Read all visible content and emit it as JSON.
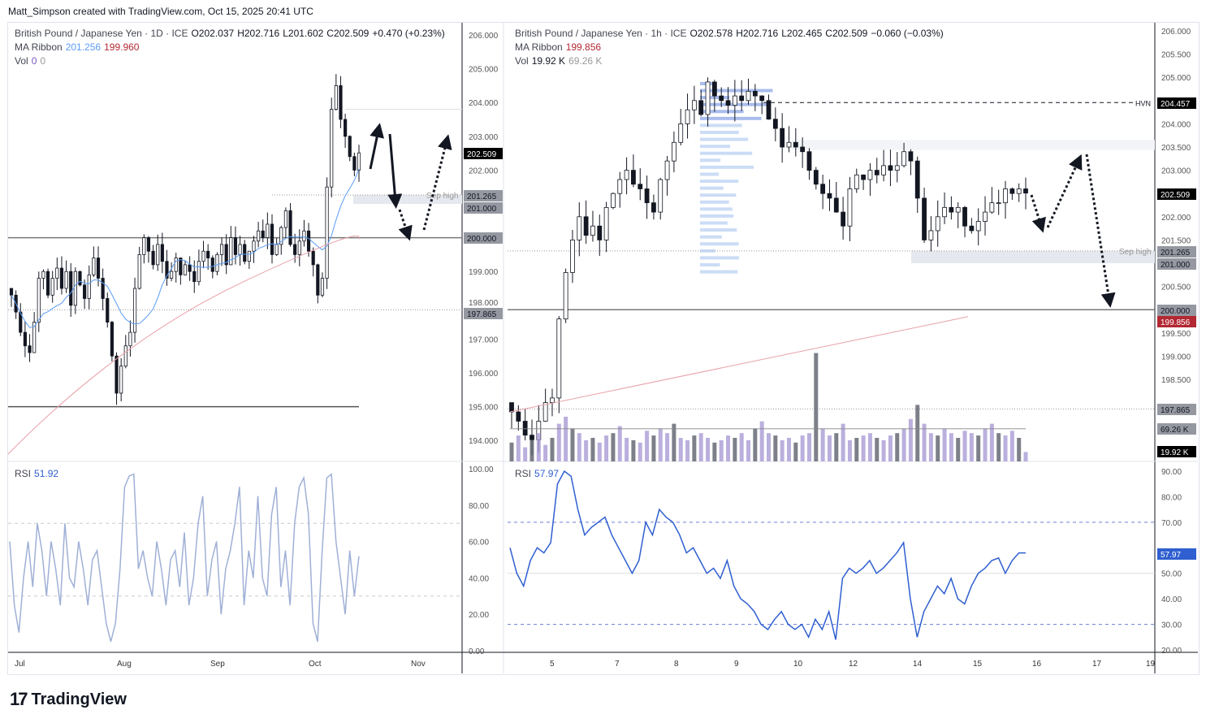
{
  "credit": "Matt_Simpson created with TradingView.com, Oct 15, 2025 20:41 UTC",
  "logo": "TradingView",
  "colors": {
    "ma_fast": "#5b9cf6",
    "ma_slow": "#e8a0a8",
    "rsi_left": "#9fb0d6",
    "rsi_right": "#2f5fd0",
    "last_price": "#000000",
    "ma_label": "#b22833",
    "volume": "#a99bd4"
  },
  "left": {
    "title": "British Pound / Japanese Yen · 1D · ICE",
    "open": "O202.037",
    "high": "H202.716",
    "low": "L201.602",
    "close": "C202.509",
    "change": "+0.470 (+0.23%)",
    "ma_label": "MA Ribbon",
    "ma_fast": "201.256",
    "ma_slow": "199.960",
    "vol_label": "Vol",
    "vol1": "0",
    "vol2": "0",
    "rsi_label": "RSI",
    "rsi_value": "51.92",
    "annotation": "Sep high",
    "price_ticks": [
      "206.000",
      "205.000",
      "204.000",
      "203.000",
      "202.000",
      "201.000",
      "200.000",
      "199.000",
      "198.000",
      "197.000",
      "196.000",
      "195.000",
      "194.000"
    ],
    "badges": {
      "last": "202.509",
      "sep_high": "201.265",
      "zone_low": "201.000",
      "level": "200.000",
      "low": "197.865"
    },
    "rsi_ticks": [
      "100.00",
      "80.00",
      "60.00",
      "40.00",
      "20.00",
      "0.00"
    ],
    "time_ticks": [
      "Jul",
      "Aug",
      "Sep",
      "Oct",
      "Nov"
    ]
  },
  "right": {
    "title": "British Pound / Japanese Yen · 1h · ICE",
    "open": "O202.578",
    "high": "H202.716",
    "low": "L202.465",
    "close": "C202.509",
    "change": "−0.060 (−0.03%)",
    "ma_label": "MA Ribbon",
    "ma_slow": "199.856",
    "vol_label": "Vol",
    "vol1": "19.92 K",
    "vol2": "69.26 K",
    "rsi_label": "RSI",
    "rsi_value": "57.97",
    "annotation": "Sep high",
    "hvn": "HVN",
    "price_ticks": [
      "206.000",
      "205.500",
      "205.000",
      "204.000",
      "203.500",
      "203.000",
      "202.000",
      "201.500",
      "200.500",
      "199.500",
      "199.000",
      "198.500"
    ],
    "badges": {
      "hvn": "204.457",
      "last": "202.509",
      "sep_high": "201.265",
      "zone_low": "201.000",
      "level": "200.000",
      "ma": "199.856",
      "low": "197.865",
      "vol_ma": "69.26 K",
      "vol": "19.92 K",
      "rsi": "57.97"
    },
    "rsi_ticks": [
      "90.00",
      "80.00",
      "70.00",
      "50.00",
      "40.00",
      "30.00",
      "20.00"
    ],
    "time_ticks": [
      "5",
      "7",
      "8",
      "9",
      "10",
      "12",
      "14",
      "15",
      "16",
      "17",
      "19"
    ]
  },
  "chart_data": [
    {
      "type": "candlestick",
      "timeframe": "1D",
      "x_range": [
        "2025-07-01",
        "2025-10-15"
      ],
      "ylim": [
        194,
        206
      ],
      "close": [
        198.3,
        197.8,
        197.2,
        196.8,
        196.6,
        197.5,
        198.8,
        199.0,
        198.3,
        198.8,
        199.1,
        198.5,
        199.0,
        198.0,
        199.0,
        198.6,
        198.2,
        198.9,
        199.4,
        198.8,
        198.2,
        197.5,
        196.5,
        195.4,
        196.2,
        196.8,
        197.2,
        198.5,
        199.5,
        200.0,
        199.6,
        199.2,
        199.8,
        199.3,
        198.8,
        199.0,
        199.4,
        198.9,
        199.2,
        199.0,
        198.7,
        199.3,
        199.6,
        199.4,
        199.0,
        199.5,
        199.8,
        199.2,
        200.0,
        199.5,
        199.8,
        199.3,
        199.6,
        199.9,
        200.2,
        200.0,
        200.4,
        199.5,
        199.8,
        200.3,
        200.8,
        199.8,
        199.5,
        199.9,
        200.2,
        199.6,
        199.2,
        198.3,
        198.8,
        201.5,
        203.8,
        204.5,
        203.5,
        203.0,
        202.4,
        202.0,
        202.509
      ],
      "rsi": [
        60,
        25,
        10,
        40,
        60,
        35,
        70,
        55,
        30,
        60,
        45,
        25,
        70,
        40,
        35,
        60,
        45,
        25,
        50,
        55,
        35,
        15,
        5,
        15,
        45,
        90,
        96,
        97,
        45,
        55,
        40,
        30,
        60,
        45,
        25,
        50,
        55,
        35,
        65,
        25,
        40,
        70,
        85,
        30,
        50,
        60,
        20,
        45,
        55,
        70,
        90,
        25,
        55,
        40,
        85,
        40,
        30,
        75,
        90,
        35,
        55,
        25,
        70,
        90,
        95,
        75,
        15,
        5,
        55,
        95,
        97,
        60,
        40,
        20,
        55,
        30,
        51.92
      ],
      "levels": {
        "sep_high": 201.265,
        "zone": [
          201.0,
          201.265
        ],
        "round": 200.0,
        "low": 197.865,
        "support": 195.0
      },
      "ma_fast_end": 201.256,
      "ma_slow_end": 199.96
    },
    {
      "type": "candlestick",
      "timeframe": "1h",
      "x_range": [
        "2025-10-03",
        "2025-10-15"
      ],
      "ylim": [
        194,
        206.2
      ],
      "close": [
        197.8,
        197.6,
        197.3,
        197.2,
        197.6,
        198.0,
        198.1,
        199.8,
        200.8,
        201.5,
        202.0,
        201.6,
        201.8,
        201.5,
        202.2,
        202.5,
        202.8,
        203.0,
        202.7,
        202.6,
        202.3,
        202.1,
        202.8,
        203.2,
        203.6,
        204.0,
        204.3,
        204.5,
        204.2,
        204.9,
        204.6,
        204.5,
        204.4,
        204.6,
        204.5,
        204.7,
        204.6,
        204.5,
        204.1,
        203.9,
        203.5,
        203.6,
        203.5,
        203.4,
        203.0,
        202.7,
        202.5,
        202.4,
        202.1,
        201.8,
        202.6,
        202.9,
        202.8,
        203.0,
        202.9,
        203.1,
        203.0,
        203.1,
        203.4,
        203.2,
        202.4,
        201.5,
        201.7,
        202.0,
        202.2,
        202.1,
        202.2,
        201.8,
        201.7,
        201.9,
        202.1,
        202.3,
        202.3,
        202.6,
        202.5,
        202.6,
        202.509
      ],
      "volume_k": [
        40,
        55,
        30,
        45,
        60,
        35,
        50,
        80,
        95,
        70,
        60,
        45,
        50,
        40,
        55,
        60,
        75,
        50,
        45,
        40,
        65,
        55,
        70,
        60,
        80,
        50,
        45,
        55,
        60,
        50,
        40,
        45,
        55,
        50,
        60,
        45,
        70,
        85,
        60,
        55,
        45,
        50,
        40,
        55,
        60,
        230,
        70,
        55,
        60,
        80,
        45,
        50,
        55,
        60,
        50,
        45,
        55,
        60,
        70,
        90,
        120,
        80,
        60,
        55,
        70,
        60,
        50,
        65,
        60,
        55,
        70,
        80,
        60,
        55,
        65,
        50,
        19.92
      ],
      "rsi": [
        60,
        50,
        45,
        55,
        60,
        58,
        62,
        85,
        90,
        88,
        75,
        65,
        68,
        70,
        72,
        65,
        60,
        55,
        50,
        55,
        70,
        65,
        75,
        72,
        70,
        65,
        58,
        60,
        55,
        50,
        52,
        48,
        55,
        45,
        40,
        38,
        35,
        30,
        28,
        32,
        35,
        30,
        28,
        30,
        25,
        32,
        28,
        35,
        24,
        48,
        52,
        50,
        52,
        55,
        50,
        52,
        55,
        58,
        62,
        40,
        25,
        35,
        40,
        45,
        42,
        48,
        40,
        38,
        45,
        50,
        52,
        55,
        56,
        50,
        55,
        58,
        57.97
      ],
      "levels": {
        "hvn": 204.457,
        "sep_high": 201.265,
        "zone": [
          201.0,
          201.265
        ],
        "round": 200.0,
        "low": 197.865
      },
      "ma_slow_end": 199.856,
      "vol_ma_k": 69.26
    }
  ]
}
